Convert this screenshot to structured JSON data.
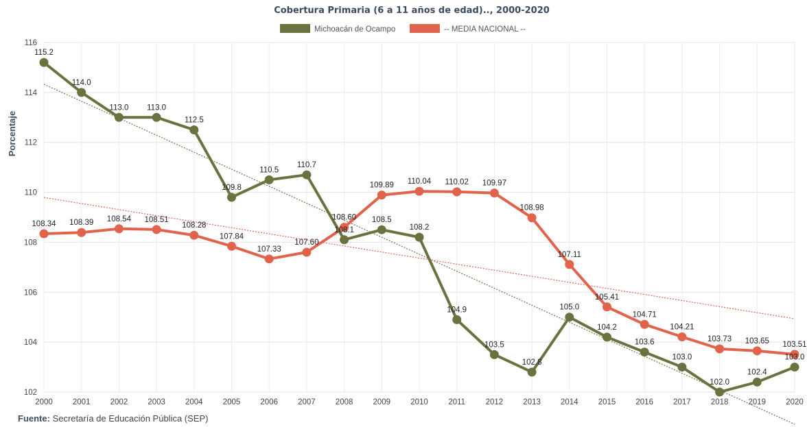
{
  "chart_data": {
    "type": "line",
    "title": "Cobertura Primaria (6 a 11 años de edad).., 2000-2020",
    "ylabel": "Porcentaje",
    "xlabel": "",
    "ylim": [
      102,
      116
    ],
    "yticks": [
      102,
      104,
      106,
      108,
      110,
      112,
      114,
      116
    ],
    "grid": true,
    "legend_position": "top-center",
    "x": [
      "2000",
      "2001",
      "2002",
      "2003",
      "2004",
      "2005",
      "2006",
      "2007",
      "2008",
      "2009",
      "2010",
      "2011",
      "2012",
      "2013",
      "2014",
      "2015",
      "2016",
      "2017",
      "2018",
      "2019",
      "2020"
    ],
    "series": [
      {
        "name": "Michoacán de Ocampo",
        "color": "#6b7240",
        "values": [
          115.2,
          114.0,
          113.0,
          113.0,
          112.5,
          109.8,
          110.5,
          110.7,
          108.1,
          108.5,
          108.2,
          104.9,
          103.5,
          102.8,
          105.0,
          104.2,
          103.6,
          103.0,
          102.0,
          102.4,
          103.0
        ],
        "labels": [
          "115.2",
          "114.0",
          "113.0",
          "113.0",
          "112.5",
          "109.8",
          "110.5",
          "110.7",
          "108.1",
          "108.5",
          "108.2",
          "104.9",
          "103.5",
          "102.8",
          "105.0",
          "104.2",
          "103.6",
          "103.0",
          "102.0",
          "102.4",
          "103.0"
        ],
        "trendline": true,
        "trend_color": "#6b7240"
      },
      {
        "name": "-- MEDIA NACIONAL --",
        "color": "#e2634c",
        "values": [
          108.34,
          108.39,
          108.54,
          108.51,
          108.28,
          107.84,
          107.33,
          107.6,
          108.6,
          109.89,
          110.04,
          110.02,
          109.97,
          108.98,
          107.11,
          105.41,
          104.71,
          104.21,
          103.73,
          103.65,
          103.51
        ],
        "labels": [
          "108.34",
          "108.39",
          "108.54",
          "108.51",
          "108.28",
          "107.84",
          "107.33",
          "107.60",
          "108.60",
          "109.89",
          "110.04",
          "110.02",
          "109.97",
          "108.98",
          "107.11",
          "105.41",
          "104.71",
          "104.21",
          "103.73",
          "103.65",
          "103.51"
        ],
        "trendline": true,
        "trend_color": "#e2634c"
      }
    ]
  },
  "source": {
    "label": "Fuente:",
    "text": "Secretaría de Educación Pública (SEP)"
  }
}
